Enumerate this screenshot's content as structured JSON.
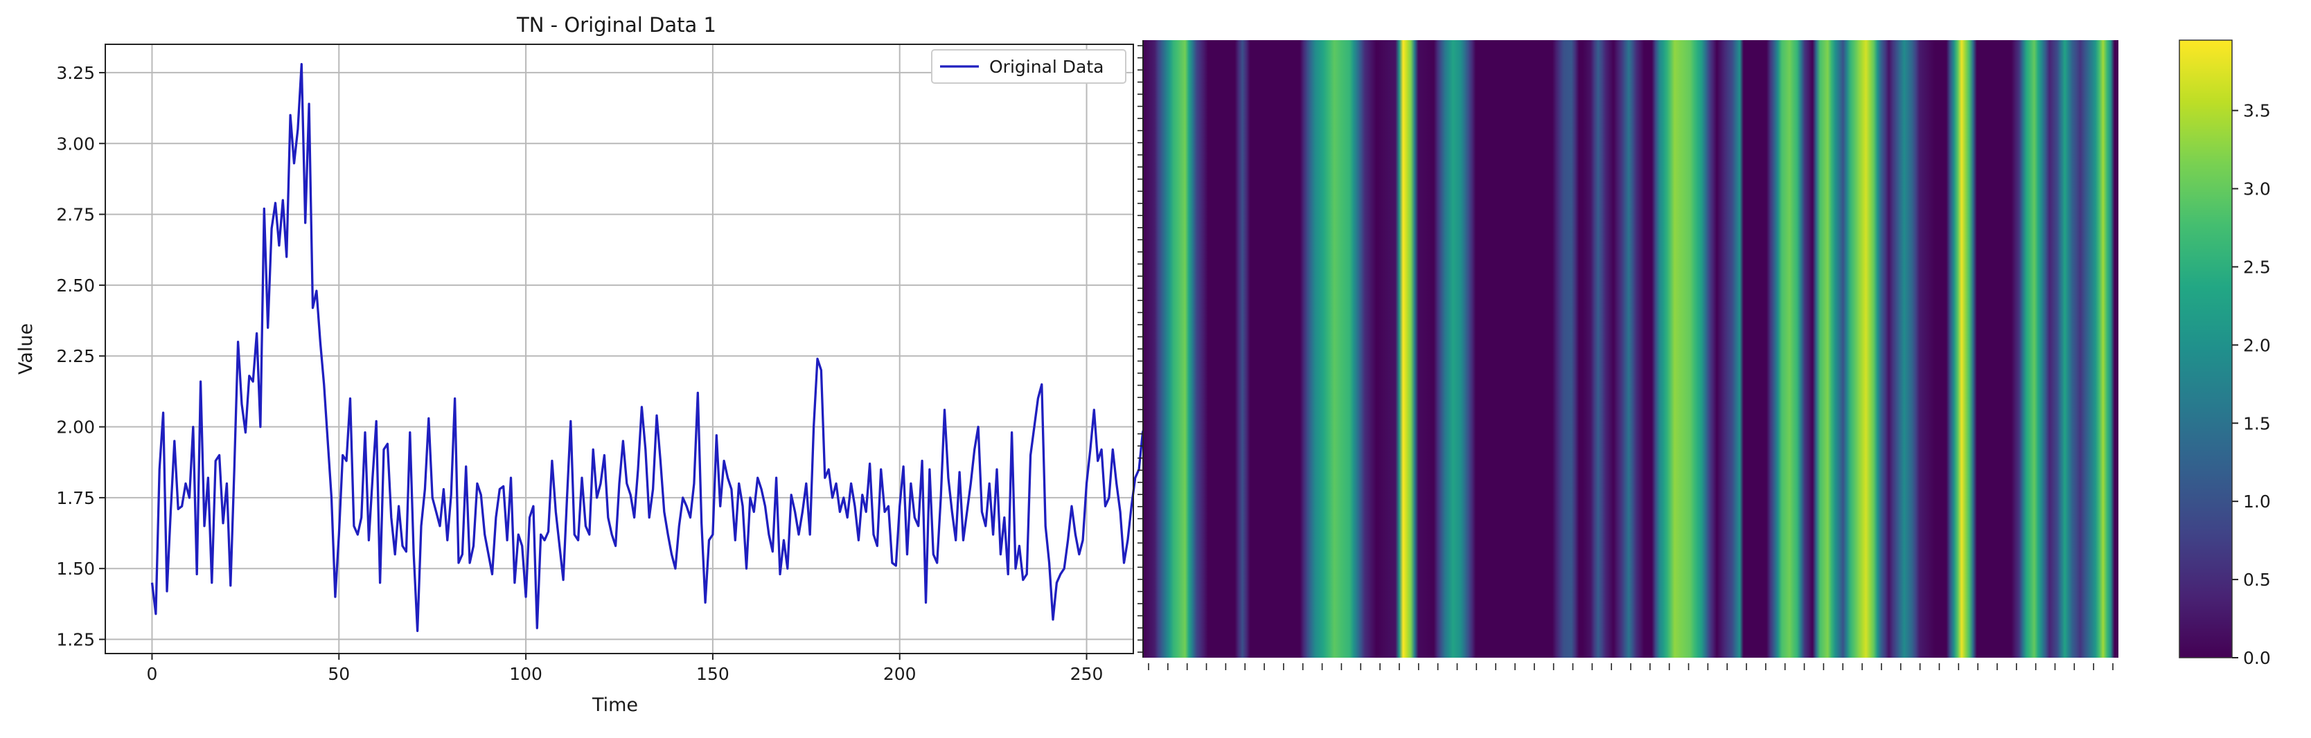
{
  "chart_data": [
    {
      "type": "line",
      "title": "TN - Original Data 1",
      "xlabel": "Time",
      "ylabel": "Value",
      "xlim": [
        -12.5,
        262.5
      ],
      "ylim": [
        1.2,
        3.35
      ],
      "xticks": [
        0,
        50,
        100,
        150,
        200,
        250
      ],
      "yticks": [
        1.25,
        1.5,
        1.75,
        2.0,
        2.25,
        2.5,
        2.75,
        3.0,
        3.25
      ],
      "xtick_labels": [
        "0",
        "50",
        "100",
        "150",
        "200",
        "250"
      ],
      "ytick_labels": [
        "1.25",
        "1.50",
        "1.75",
        "2.00",
        "2.25",
        "2.50",
        "2.75",
        "3.00",
        "3.25"
      ],
      "grid": true,
      "legend_position": "top-right",
      "series": [
        {
          "name": "Original Data",
          "color": "#1f1fbf",
          "x_start": 0,
          "x_step": 1,
          "values": [
            1.45,
            1.34,
            1.85,
            2.05,
            1.42,
            1.7,
            1.95,
            1.71,
            1.72,
            1.8,
            1.75,
            2.0,
            1.48,
            2.16,
            1.65,
            1.82,
            1.45,
            1.88,
            1.9,
            1.66,
            1.8,
            1.44,
            1.85,
            2.3,
            2.08,
            1.98,
            2.18,
            2.16,
            2.33,
            2.0,
            2.77,
            2.35,
            2.7,
            2.79,
            2.64,
            2.8,
            2.6,
            3.1,
            2.93,
            3.05,
            3.28,
            2.72,
            3.14,
            2.42,
            2.48,
            2.3,
            2.15,
            1.95,
            1.75,
            1.4,
            1.62,
            1.9,
            1.88,
            2.1,
            1.65,
            1.62,
            1.68,
            1.98,
            1.6,
            1.82,
            2.02,
            1.45,
            1.92,
            1.94,
            1.68,
            1.55,
            1.72,
            1.58,
            1.56,
            1.98,
            1.55,
            1.28,
            1.65,
            1.78,
            2.03,
            1.75,
            1.7,
            1.65,
            1.78,
            1.6,
            1.76,
            2.1,
            1.52,
            1.55,
            1.86,
            1.52,
            1.58,
            1.8,
            1.76,
            1.62,
            1.55,
            1.48,
            1.68,
            1.78,
            1.79,
            1.6,
            1.82,
            1.45,
            1.62,
            1.58,
            1.4,
            1.68,
            1.72,
            1.29,
            1.62,
            1.6,
            1.63,
            1.88,
            1.7,
            1.58,
            1.46,
            1.75,
            2.02,
            1.62,
            1.6,
            1.82,
            1.65,
            1.62,
            1.92,
            1.75,
            1.8,
            1.9,
            1.68,
            1.62,
            1.58,
            1.8,
            1.95,
            1.8,
            1.76,
            1.68,
            1.85,
            2.07,
            1.92,
            1.68,
            1.78,
            2.04,
            1.88,
            1.7,
            1.62,
            1.55,
            1.5,
            1.65,
            1.75,
            1.72,
            1.68,
            1.8,
            2.12,
            1.66,
            1.38,
            1.6,
            1.62,
            1.97,
            1.72,
            1.88,
            1.82,
            1.78,
            1.6,
            1.8,
            1.72,
            1.5,
            1.75,
            1.7,
            1.82,
            1.78,
            1.72,
            1.62,
            1.56,
            1.82,
            1.48,
            1.6,
            1.5,
            1.76,
            1.7,
            1.62,
            1.7,
            1.8,
            1.62,
            2.0,
            2.24,
            2.2,
            1.82,
            1.85,
            1.75,
            1.8,
            1.7,
            1.75,
            1.68,
            1.8,
            1.72,
            1.6,
            1.76,
            1.7,
            1.87,
            1.62,
            1.58,
            1.85,
            1.7,
            1.72,
            1.52,
            1.51,
            1.72,
            1.86,
            1.55,
            1.8,
            1.68,
            1.65,
            1.88,
            1.38,
            1.85,
            1.55,
            1.52,
            1.75,
            2.06,
            1.82,
            1.7,
            1.6,
            1.84,
            1.6,
            1.7,
            1.8,
            1.92,
            2.0,
            1.7,
            1.65,
            1.8,
            1.62,
            1.85,
            1.55,
            1.68,
            1.48,
            1.98,
            1.5,
            1.58,
            1.46,
            1.48,
            1.9,
            2.0,
            2.1,
            2.15,
            1.65,
            1.52,
            1.32,
            1.45,
            1.48,
            1.5,
            1.6,
            1.72,
            1.62,
            1.55,
            1.6,
            1.8,
            1.92,
            2.06,
            1.88,
            1.92,
            1.72,
            1.75,
            1.92,
            1.8,
            1.7,
            1.52,
            1.6,
            1.72,
            1.82,
            1.85,
            1.98,
            2.02
          ]
        }
      ]
    },
    {
      "type": "heatmap",
      "title": "",
      "colormap": "viridis",
      "vmin": 0.0,
      "vmax": 3.95,
      "colorbar_ticks": [
        0.0,
        0.5,
        1.0,
        1.5,
        2.0,
        2.5,
        3.0,
        3.5
      ],
      "colorbar_tick_labels": [
        "0.0",
        "0.5",
        "1.0",
        "1.5",
        "2.0",
        "2.5",
        "3.0",
        "3.5"
      ],
      "x_tick_count": 51,
      "y_tick_count": 51,
      "columns_count": 256,
      "column_profile": [
        [
          0,
          0.0
        ],
        [
          3,
          0.3
        ],
        [
          8,
          2.6
        ],
        [
          11,
          3.1
        ],
        [
          14,
          0.8
        ],
        [
          17,
          0.0
        ],
        [
          24,
          0.0
        ],
        [
          26,
          1.0
        ],
        [
          28,
          0.0
        ],
        [
          41,
          0.0
        ],
        [
          45,
          1.9
        ],
        [
          50,
          2.95
        ],
        [
          54,
          2.6
        ],
        [
          58,
          0.5
        ],
        [
          61,
          0.0
        ],
        [
          66,
          0.2
        ],
        [
          68,
          3.95
        ],
        [
          70,
          3.2
        ],
        [
          72,
          0.1
        ],
        [
          76,
          0.0
        ],
        [
          79,
          1.6
        ],
        [
          81,
          2.3
        ],
        [
          83,
          2.0
        ],
        [
          87,
          0.0
        ],
        [
          101,
          0.0
        ],
        [
          107,
          0.0
        ],
        [
          110,
          1.0
        ],
        [
          112,
          1.1
        ],
        [
          114,
          0.0
        ],
        [
          115,
          0.0
        ],
        [
          117,
          0.2
        ],
        [
          119,
          1.2
        ],
        [
          121,
          0.4
        ],
        [
          123,
          0.0
        ],
        [
          125,
          0.6
        ],
        [
          127,
          1.55
        ],
        [
          129,
          0.5
        ],
        [
          131,
          0.0
        ],
        [
          133,
          0.0
        ],
        [
          135,
          1.8
        ],
        [
          139,
          3.3
        ],
        [
          143,
          3.0
        ],
        [
          146,
          2.2
        ],
        [
          148,
          0.8
        ],
        [
          150,
          0.0
        ],
        [
          154,
          0.9
        ],
        [
          156,
          2.0
        ],
        [
          157,
          0.0
        ],
        [
          163,
          0.0
        ],
        [
          165,
          1.2
        ],
        [
          167,
          2.8
        ],
        [
          169,
          3.1
        ],
        [
          171,
          2.6
        ],
        [
          173,
          0.6
        ],
        [
          175,
          0.0
        ],
        [
          177,
          2.8
        ],
        [
          179,
          3.2
        ],
        [
          181,
          2.0
        ],
        [
          183,
          1.0
        ],
        [
          185,
          2.6
        ],
        [
          187,
          3.2
        ],
        [
          189,
          3.7
        ],
        [
          191,
          3.0
        ],
        [
          193,
          1.2
        ],
        [
          195,
          0.2
        ],
        [
          197,
          1.0
        ],
        [
          199,
          1.9
        ],
        [
          201,
          1.3
        ],
        [
          203,
          0.3
        ],
        [
          207,
          0.0
        ],
        [
          210,
          0.0
        ],
        [
          212,
          2.0
        ],
        [
          214,
          3.85
        ],
        [
          216,
          2.8
        ],
        [
          218,
          0.0
        ],
        [
          227,
          0.0
        ],
        [
          229,
          0.6
        ],
        [
          231,
          2.4
        ],
        [
          233,
          3.0
        ],
        [
          235,
          1.8
        ],
        [
          237,
          0.4
        ],
        [
          239,
          0.9
        ],
        [
          241,
          2.3
        ],
        [
          243,
          1.2
        ],
        [
          245,
          0.6
        ],
        [
          247,
          1.3
        ],
        [
          249,
          2.1
        ],
        [
          251,
          3.4
        ],
        [
          253,
          2.0
        ],
        [
          254,
          0.0
        ],
        [
          255,
          0.0
        ]
      ]
    }
  ]
}
